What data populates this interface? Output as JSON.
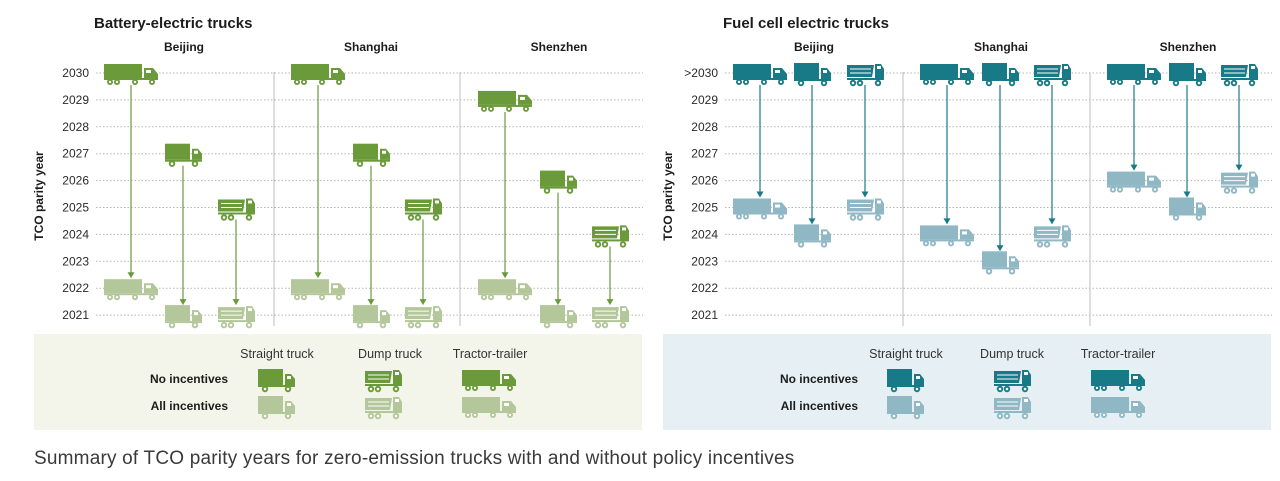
{
  "caption": "Summary of TCO parity years for zero-emission trucks with and without policy incentives",
  "ylabel": "TCO parity year",
  "legend": {
    "types": [
      "Straight truck",
      "Dump truck",
      "Tractor-trailer"
    ],
    "rows": [
      "No incentives",
      "All incentives"
    ]
  },
  "colors": {
    "bev_dark": "#6a9a3a",
    "bev_light": "#b3c79a",
    "fcev_dark": "#177a86",
    "fcev_light": "#8fb8c4",
    "bev_legend_bg": "#f3f4ea",
    "fcev_legend_bg": "#e6eff3"
  },
  "chart_data": [
    {
      "type": "scatter",
      "title": "Battery-electric trucks",
      "ylabel": "TCO parity year",
      "y_ticks": [
        "2021",
        "2022",
        "2023",
        "2024",
        "2025",
        "2026",
        "2027",
        "2028",
        "2029",
        "2030"
      ],
      "ylim": [
        2021,
        2030
      ],
      "cities": [
        "Beijing",
        "Shanghai",
        "Shenzhen"
      ],
      "truck_types": [
        "Tractor-trailer",
        "Straight truck",
        "Dump truck"
      ],
      "series": [
        {
          "name": "No incentives",
          "values": {
            "Beijing": {
              "Tractor-trailer": 2030,
              "Straight truck": 2027,
              "Dump truck": 2025
            },
            "Shanghai": {
              "Tractor-trailer": 2030,
              "Straight truck": 2027,
              "Dump truck": 2025
            },
            "Shenzhen": {
              "Tractor-trailer": 2029,
              "Straight truck": 2026,
              "Dump truck": 2024
            }
          }
        },
        {
          "name": "All incentives",
          "values": {
            "Beijing": {
              "Tractor-trailer": 2022,
              "Straight truck": 2021,
              "Dump truck": 2021
            },
            "Shanghai": {
              "Tractor-trailer": 2022,
              "Straight truck": 2021,
              "Dump truck": 2021
            },
            "Shenzhen": {
              "Tractor-trailer": 2022,
              "Straight truck": 2021,
              "Dump truck": 2021
            }
          }
        }
      ]
    },
    {
      "type": "scatter",
      "title": "Fuel cell electric trucks",
      "ylabel": "TCO parity year",
      "y_ticks": [
        "2021",
        "2022",
        "2023",
        "2024",
        "2025",
        "2026",
        "2027",
        "2028",
        "2029",
        ">2030"
      ],
      "ylim": [
        2021,
        2030
      ],
      "cities": [
        "Beijing",
        "Shanghai",
        "Shenzhen"
      ],
      "truck_types": [
        "Tractor-trailer",
        "Straight truck",
        "Dump truck"
      ],
      "series": [
        {
          "name": "No incentives",
          "values": {
            "Beijing": {
              "Tractor-trailer": ">2030",
              "Straight truck": ">2030",
              "Dump truck": ">2030"
            },
            "Shanghai": {
              "Tractor-trailer": ">2030",
              "Straight truck": ">2030",
              "Dump truck": ">2030"
            },
            "Shenzhen": {
              "Tractor-trailer": ">2030",
              "Straight truck": ">2030",
              "Dump truck": ">2030"
            }
          }
        },
        {
          "name": "All incentives",
          "values": {
            "Beijing": {
              "Tractor-trailer": 2025,
              "Straight truck": 2024,
              "Dump truck": 2025
            },
            "Shanghai": {
              "Tractor-trailer": 2024,
              "Straight truck": 2023,
              "Dump truck": 2024
            },
            "Shenzhen": {
              "Tractor-trailer": 2026,
              "Straight truck": 2025,
              "Dump truck": 2026
            }
          }
        }
      ]
    }
  ]
}
